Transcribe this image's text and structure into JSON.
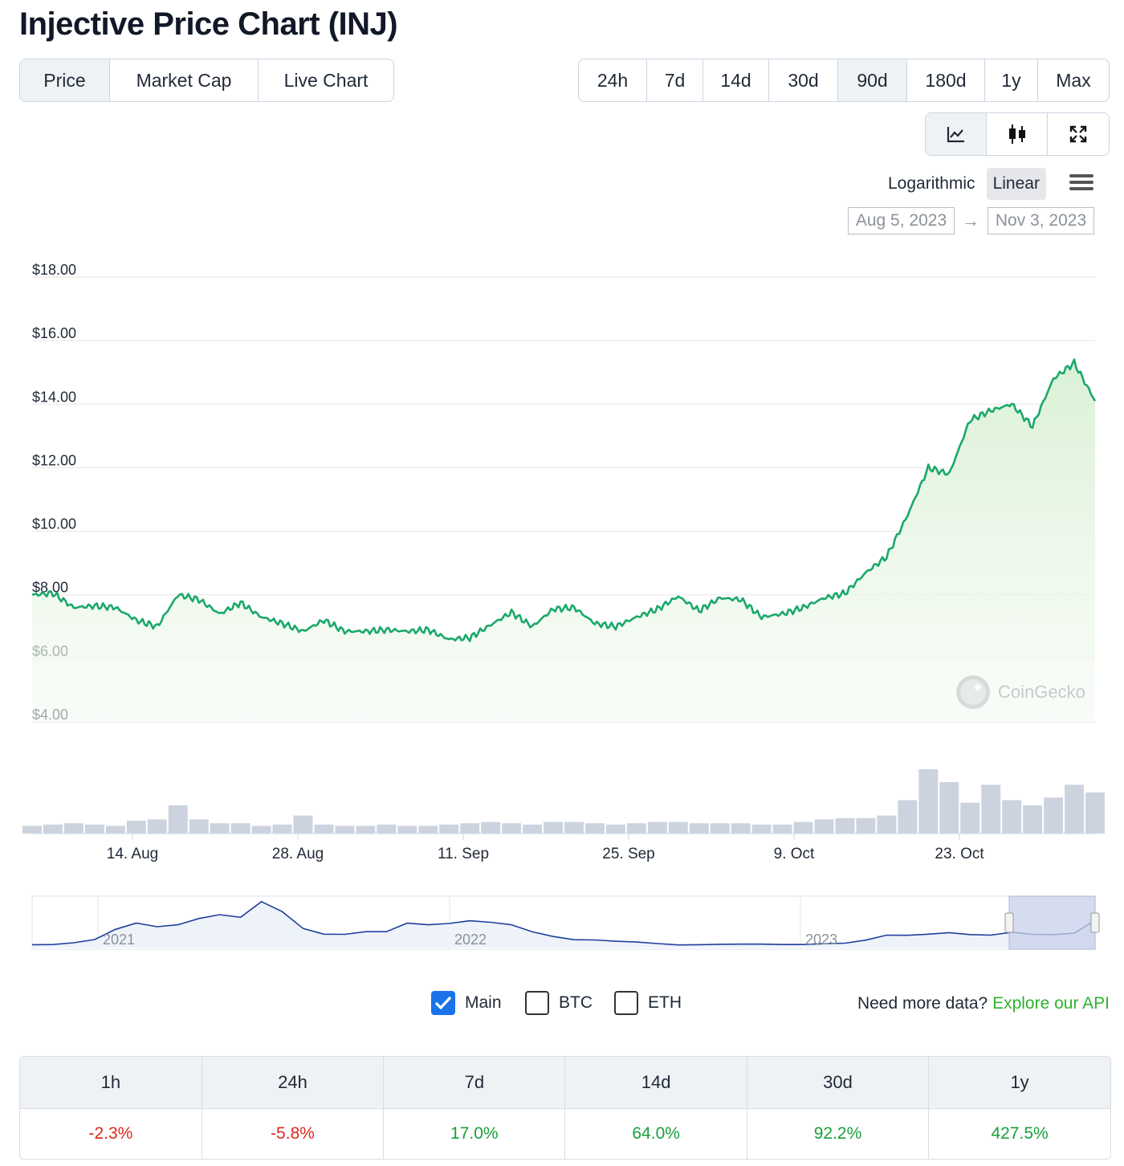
{
  "page_title": "Injective Price Chart (INJ)",
  "view_tabs": [
    {
      "label": "Price",
      "active": true
    },
    {
      "label": "Market Cap",
      "active": false
    },
    {
      "label": "Live Chart",
      "active": false
    }
  ],
  "time_ranges": [
    {
      "label": "24h",
      "active": false
    },
    {
      "label": "7d",
      "active": false
    },
    {
      "label": "14d",
      "active": false
    },
    {
      "label": "30d",
      "active": false
    },
    {
      "label": "90d",
      "active": true
    },
    {
      "label": "180d",
      "active": false
    },
    {
      "label": "1y",
      "active": false
    },
    {
      "label": "Max",
      "active": false
    }
  ],
  "chart_types": [
    {
      "name": "line-chart-icon",
      "active": true
    },
    {
      "name": "candlestick-icon",
      "active": false
    },
    {
      "name": "fullscreen-icon",
      "active": false
    }
  ],
  "scale": {
    "logarithmic_label": "Logarithmic",
    "linear_label": "Linear",
    "active": "linear"
  },
  "date_range": {
    "from": "Aug 5, 2023",
    "arrow": "→",
    "to": "Nov 3, 2023"
  },
  "watermark": "CoinGecko",
  "colors": {
    "line": "#1aa86b",
    "area_top": "#dff2dc",
    "volume": "#c3cbd9",
    "navigator": "#1f3f9c",
    "selection": "#d5dbed"
  },
  "chart_data": {
    "type": "line",
    "x": [
      "Aug 5",
      "Aug 7",
      "Aug 9",
      "Aug 11",
      "Aug 13",
      "Aug 15",
      "Aug 17",
      "Aug 19",
      "Aug 21",
      "Aug 23",
      "Aug 25",
      "Aug 27",
      "Aug 29",
      "Aug 31",
      "Sep 2",
      "Sep 4",
      "Sep 6",
      "Sep 8",
      "Sep 10",
      "Sep 12",
      "Sep 14",
      "Sep 16",
      "Sep 18",
      "Sep 20",
      "Sep 22",
      "Sep 24",
      "Sep 26",
      "Sep 28",
      "Sep 30",
      "Oct 2",
      "Oct 4",
      "Oct 6",
      "Oct 8",
      "Oct 10",
      "Oct 12",
      "Oct 14",
      "Oct 16",
      "Oct 18",
      "Oct 20",
      "Oct 22",
      "Oct 23",
      "Oct 24",
      "Oct 25",
      "Oct 26",
      "Oct 27",
      "Oct 28",
      "Oct 29",
      "Oct 30",
      "Oct 31",
      "Nov 1",
      "Nov 2",
      "Nov 3"
    ],
    "series": [
      {
        "values": [
          8.0,
          8.05,
          7.6,
          7.65,
          7.6,
          7.2,
          7.0,
          8.0,
          7.85,
          7.4,
          7.75,
          7.3,
          7.1,
          6.85,
          7.2,
          6.85,
          6.85,
          6.9,
          6.85,
          6.9,
          6.6,
          6.65,
          7.05,
          7.45,
          7.0,
          7.55,
          7.6,
          7.1,
          7.0,
          7.3,
          7.55,
          7.95,
          7.5,
          7.9,
          7.85,
          7.3,
          7.4,
          7.6,
          7.9,
          8.05,
          8.7,
          9.2,
          10.5,
          12.0,
          11.8,
          13.5,
          13.8,
          14.0,
          13.3,
          14.8,
          15.3,
          14.1
        ]
      },
      {
        "values": [
          0.3,
          0.35,
          0.4,
          0.35,
          0.3,
          0.5,
          0.55,
          1.1,
          0.55,
          0.4,
          0.4,
          0.3,
          0.35,
          0.7,
          0.35,
          0.3,
          0.3,
          0.35,
          0.3,
          0.3,
          0.35,
          0.4,
          0.45,
          0.4,
          0.35,
          0.45,
          0.45,
          0.4,
          0.35,
          0.4,
          0.45,
          0.45,
          0.4,
          0.4,
          0.4,
          0.35,
          0.35,
          0.45,
          0.55,
          0.6,
          0.6,
          0.7,
          1.3,
          2.5,
          2.0,
          1.2,
          1.9,
          1.3,
          1.1,
          1.4,
          1.9,
          1.6
        ]
      }
    ],
    "y_ticks": [
      "$18.00",
      "$16.00",
      "$14.00",
      "$12.00",
      "$10.00",
      "$8.00",
      "$6.00",
      "$4.00"
    ],
    "x_ticks": [
      "14. Aug",
      "28. Aug",
      "11. Sep",
      "25. Sep",
      "9. Oct",
      "23. Oct"
    ],
    "ylim": [
      4,
      18
    ],
    "grid": true,
    "navigator": {
      "labels": [
        "2021",
        "2022",
        "2023"
      ],
      "values": [
        1.5,
        1.6,
        2.5,
        4.2,
        9.5,
        12.8,
        10.9,
        11.9,
        15.2,
        17.2,
        15.8,
        24.0,
        18.8,
        10.0,
        7.0,
        6.9,
        8.3,
        8.3,
        12.8,
        11.9,
        12.6,
        14.0,
        13.2,
        11.9,
        8.2,
        5.8,
        4.1,
        4.0,
        3.3,
        2.9,
        2.1,
        1.4,
        1.5,
        1.7,
        1.8,
        1.8,
        1.6,
        1.6,
        2.0,
        2.3,
        3.9,
        6.5,
        6.4,
        7.0,
        7.8,
        6.8,
        6.5,
        8.0,
        6.9,
        6.8,
        7.5,
        14.2
      ]
    }
  },
  "series_toggles": [
    {
      "label": "Main",
      "checked": true
    },
    {
      "label": "BTC",
      "checked": false
    },
    {
      "label": "ETH",
      "checked": false
    }
  ],
  "api_prompt": {
    "text": "Need more data?",
    "link": "Explore our API"
  },
  "performance": {
    "headers": [
      "1h",
      "24h",
      "7d",
      "14d",
      "30d",
      "1y"
    ],
    "values": [
      "-2.3%",
      "-5.8%",
      "17.0%",
      "64.0%",
      "92.2%",
      "427.5%"
    ],
    "signs": [
      "neg",
      "neg",
      "pos",
      "pos",
      "pos",
      "pos"
    ]
  }
}
